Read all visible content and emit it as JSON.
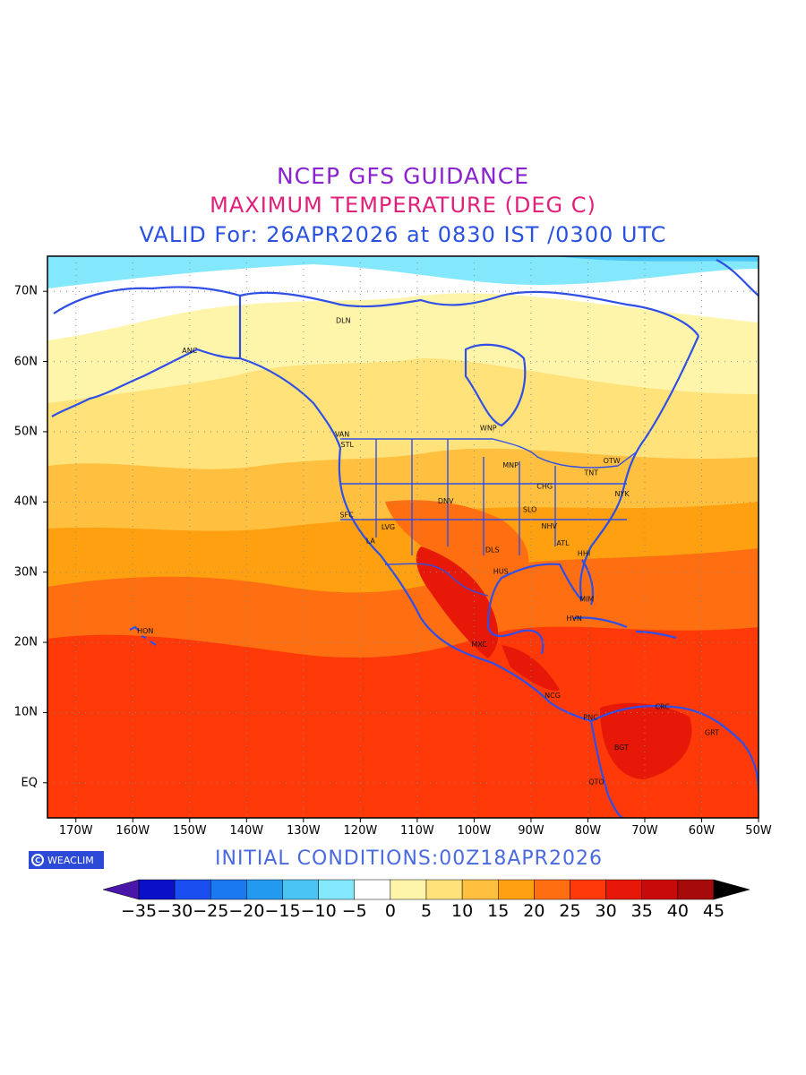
{
  "header": {
    "line1": "NCEP GFS GUIDANCE",
    "line2": "MAXIMUM TEMPERATURE (DEG C)",
    "line3": "VALID For: 26APR2026 at 0830 IST /0300 UTC"
  },
  "map": {
    "lat_labels": [
      "70N",
      "60N",
      "50N",
      "40N",
      "30N",
      "20N",
      "10N",
      "EQ"
    ],
    "lon_labels": [
      "170W",
      "160W",
      "150W",
      "140W",
      "130W",
      "120W",
      "110W",
      "100W",
      "90W",
      "80W",
      "70W",
      "60W",
      "50W"
    ],
    "grid": true,
    "coastline_color": "#2f4fe6",
    "cities": [
      "ANC",
      "DLN",
      "WNP",
      "VAN",
      "STL",
      "OTW",
      "TNT",
      "MNP",
      "CHG",
      "NYK",
      "DNV",
      "SLO",
      "SFC",
      "LVG",
      "NHV",
      "LA",
      "ATL",
      "DLS",
      "HHI",
      "HUS",
      "MIM",
      "HVN",
      "HON",
      "MXC",
      "NCG",
      "CRC",
      "PNC",
      "GRT",
      "BGT",
      "QTO"
    ]
  },
  "footer": {
    "logo_text": "WEACLIM",
    "initial_conditions": "INITIAL CONDITIONS:00Z18APR2026"
  },
  "colorbar": {
    "labels": [
      "-35",
      "-30",
      "-25",
      "-20",
      "-15",
      "-10",
      "-5",
      "0",
      "5",
      "10",
      "15",
      "20",
      "25",
      "30",
      "35",
      "40",
      "45"
    ],
    "colors": [
      "#4a16a8",
      "#0a10c8",
      "#1a4ef0",
      "#1a78f0",
      "#229af0",
      "#4ac4f4",
      "#84e8fc",
      "#ffffff",
      "#fff5aa",
      "#ffe27a",
      "#ffc040",
      "#ffa010",
      "#ff6e10",
      "#ff3a08",
      "#e81808",
      "#c80a0a",
      "#a60a0a",
      "#000000"
    ]
  }
}
